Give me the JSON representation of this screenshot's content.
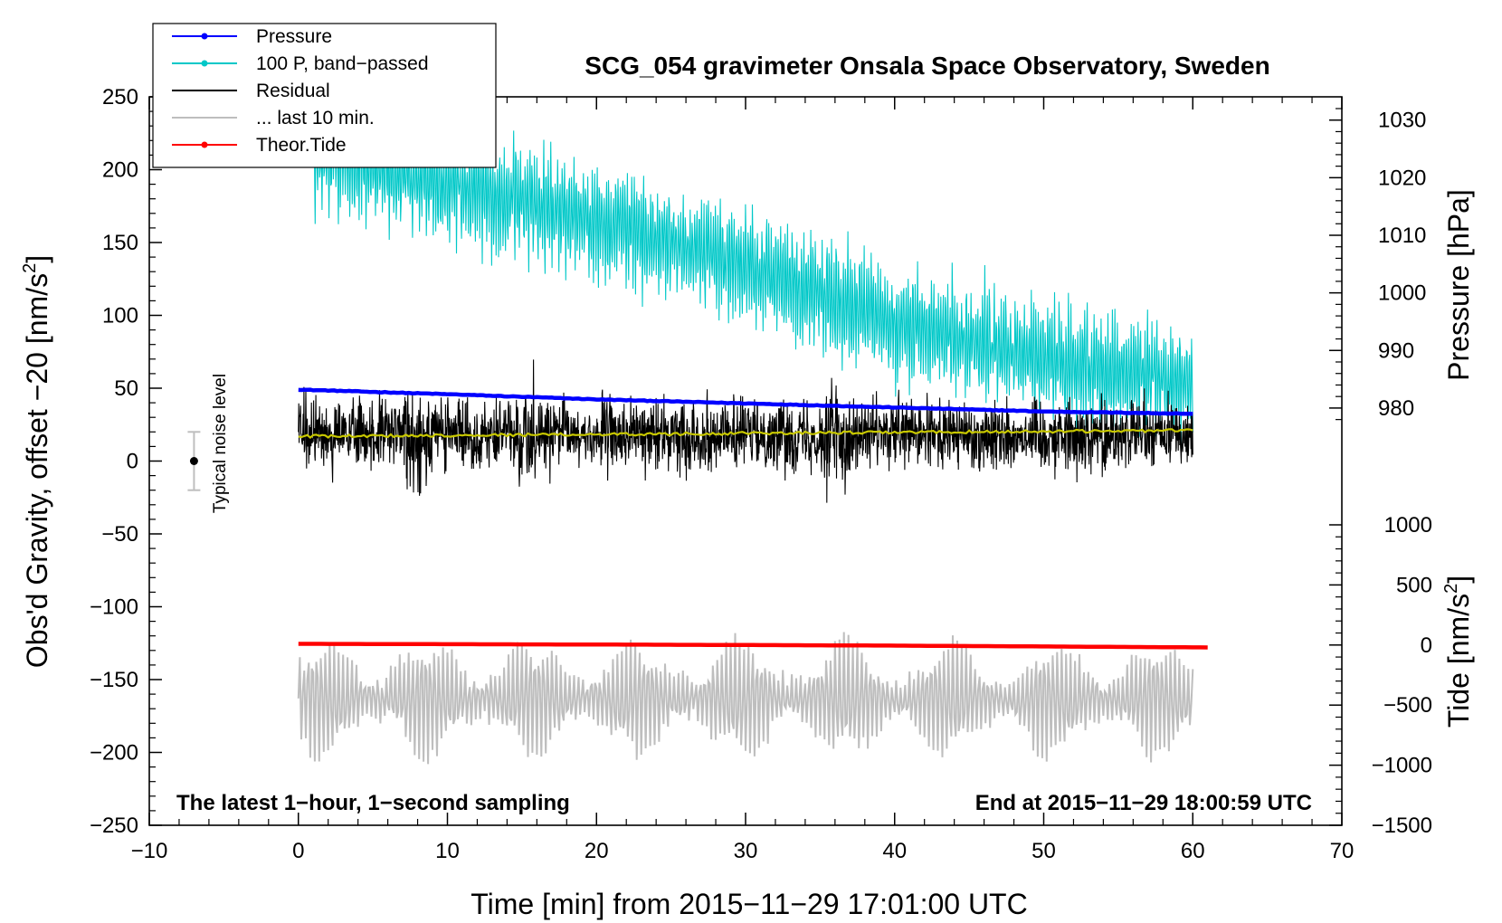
{
  "chart_data": {
    "type": "line",
    "title": "SCG_054 gravimeter Onsala Space Observatory, Sweden",
    "xlabel": "Time [min] from 2015−11−29 17:01:00 UTC",
    "ylabel_left_main": "Obs'd Gravity, offset −20 [nm/s",
    "ylabel_left_sup": "2",
    "ylabel_left_end": "]",
    "ylabel_right_pressure": "Pressure [hPa]",
    "ylabel_right_tide_main": "Tide [nm/s",
    "ylabel_right_tide_sup": "2",
    "ylabel_right_tide_end": "]",
    "xlim": [
      -10,
      70
    ],
    "ylim": [
      -250,
      250
    ],
    "pressure_lim": [
      977,
      1032
    ],
    "tide_lim": [
      -1500,
      1000
    ],
    "x_ticks": [
      -10,
      0,
      10,
      20,
      30,
      40,
      50,
      60,
      70
    ],
    "x_tick_labels": [
      "−10",
      "0",
      "10",
      "20",
      "30",
      "40",
      "50",
      "60",
      "70"
    ],
    "y_ticks": [
      -250,
      -200,
      -150,
      -100,
      -50,
      0,
      50,
      100,
      150,
      200,
      250
    ],
    "y_tick_labels": [
      "−250",
      "−200",
      "−150",
      "−100",
      "−50",
      "0",
      "50",
      "100",
      "150",
      "200",
      "250"
    ],
    "pressure_ticks": [
      980,
      990,
      1000,
      1010,
      1020,
      1030
    ],
    "pressure_tick_labels": [
      "980",
      "990",
      "1000",
      "1010",
      "1020",
      "1030"
    ],
    "tide_ticks": [
      -1500,
      -1000,
      -500,
      0,
      500,
      1000
    ],
    "tide_tick_labels": [
      "−1500",
      "−1000",
      "−500",
      "0",
      "500",
      "1000"
    ],
    "note_left": "The latest 1−hour, 1−second sampling",
    "note_right": "End at 2015−11−29 18:00:59 UTC",
    "noise_label": "Typical noise level",
    "noise_bar": {
      "x": -7,
      "center": 0,
      "low": -20,
      "high": 20
    },
    "legend": [
      {
        "label": "Pressure",
        "color": "#0000ff",
        "marker": true
      },
      {
        "label": "100 P, band−passed",
        "color": "#00c8c8",
        "marker": true
      },
      {
        "label": "Residual",
        "color": "#000000",
        "marker": false
      },
      {
        "label": "... last 10 min.",
        "color": "#bebebe",
        "marker": false
      },
      {
        "label": "Theor.Tide",
        "color": "#ff0000",
        "marker": true
      }
    ],
    "series": [
      {
        "name": "Pressure",
        "axis": "pressure",
        "color": "#0000ff",
        "x": [
          0,
          10,
          20,
          30,
          40,
          50,
          60
        ],
        "y": [
          983.2,
          982.4,
          981.5,
          980.8,
          980.1,
          979.4,
          979.0
        ]
      },
      {
        "name": "100 P, band−passed",
        "axis": "left",
        "color": "#00c8c8",
        "x": [
          1,
          10,
          20,
          30,
          40,
          50,
          60
        ],
        "y": [
          210,
          190,
          165,
          135,
          95,
          70,
          55
        ],
        "amplitude": 30
      },
      {
        "name": "Residual",
        "axis": "left",
        "color": "#000000",
        "x": [
          0,
          60
        ],
        "y": [
          18,
          18
        ],
        "amplitude": 28
      },
      {
        "name": "Residual mean",
        "axis": "left",
        "color": "#c8c800",
        "x": [
          0,
          60
        ],
        "y": [
          17,
          21
        ]
      },
      {
        "name": "... last 10 min.",
        "axis": "left",
        "color": "#bebebe",
        "x": [
          0,
          60
        ],
        "y": [
          -163,
          -163
        ],
        "amplitude": 35
      },
      {
        "name": "Theor.Tide",
        "axis": "tide",
        "color": "#ff0000",
        "x": [
          0,
          10,
          20,
          30,
          40,
          50,
          61
        ],
        "y": [
          10,
          7,
          4,
          0,
          -5,
          -12,
          -20
        ]
      }
    ]
  },
  "colors": {
    "frame": "#000000",
    "background": "#ffffff"
  }
}
